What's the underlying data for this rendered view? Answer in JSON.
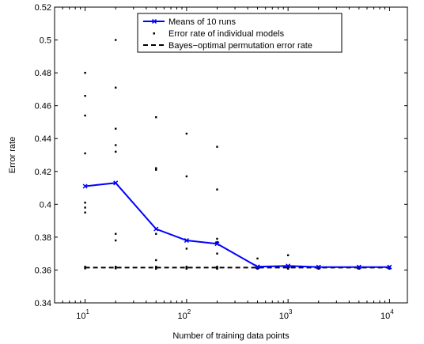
{
  "chart_data": {
    "type": "scatter",
    "xscale": "log",
    "xlabel": "Number of training data points",
    "ylabel": "Error rate",
    "xlim": [
      5,
      15000
    ],
    "ylim": [
      0.34,
      0.52
    ],
    "yticks": [
      "0.34",
      "0.36",
      "0.38",
      "0.4",
      "0.42",
      "0.44",
      "0.46",
      "0.48",
      "0.5",
      "0.52"
    ],
    "xticks": [
      {
        "base": "10",
        "exp": "1",
        "value": 10
      },
      {
        "base": "10",
        "exp": "2",
        "value": 100
      },
      {
        "base": "10",
        "exp": "3",
        "value": 1000
      },
      {
        "base": "10",
        "exp": "4",
        "value": 10000
      }
    ],
    "grid": false,
    "legend_position": "top-center",
    "series": [
      {
        "name": "Means of 10 runs",
        "style": "line-with-x-markers",
        "color": "#0000ff",
        "x": [
          10,
          20,
          50,
          100,
          200,
          500,
          1000,
          2000,
          5000,
          10000
        ],
        "y": [
          0.411,
          0.413,
          0.385,
          0.378,
          0.376,
          0.362,
          0.3625,
          0.3618,
          0.3618,
          0.3618
        ]
      },
      {
        "name": "Error rate of individual models",
        "style": "points",
        "color": "#000000",
        "points": [
          [
            10,
            0.48
          ],
          [
            10,
            0.466
          ],
          [
            10,
            0.454
          ],
          [
            10,
            0.431
          ],
          [
            10,
            0.401
          ],
          [
            10,
            0.398
          ],
          [
            10,
            0.395
          ],
          [
            10,
            0.362
          ],
          [
            10,
            0.3615
          ],
          [
            10,
            0.361
          ],
          [
            20,
            0.5
          ],
          [
            20,
            0.471
          ],
          [
            20,
            0.446
          ],
          [
            20,
            0.436
          ],
          [
            20,
            0.432
          ],
          [
            20,
            0.382
          ],
          [
            20,
            0.378
          ],
          [
            20,
            0.362
          ],
          [
            20,
            0.3615
          ],
          [
            20,
            0.361
          ],
          [
            50,
            0.453
          ],
          [
            50,
            0.422
          ],
          [
            50,
            0.421
          ],
          [
            50,
            0.382
          ],
          [
            50,
            0.366
          ],
          [
            50,
            0.362
          ],
          [
            50,
            0.3615
          ],
          [
            50,
            0.361
          ],
          [
            50,
            0.3612
          ],
          [
            50,
            0.3608
          ],
          [
            100,
            0.443
          ],
          [
            100,
            0.417
          ],
          [
            100,
            0.373
          ],
          [
            100,
            0.362
          ],
          [
            100,
            0.3615
          ],
          [
            100,
            0.361
          ],
          [
            100,
            0.3612
          ],
          [
            100,
            0.3618
          ],
          [
            100,
            0.3608
          ],
          [
            100,
            0.3614
          ],
          [
            200,
            0.435
          ],
          [
            200,
            0.409
          ],
          [
            200,
            0.379
          ],
          [
            200,
            0.377
          ],
          [
            200,
            0.37
          ],
          [
            200,
            0.362
          ],
          [
            200,
            0.3615
          ],
          [
            200,
            0.361
          ],
          [
            200,
            0.3612
          ],
          [
            200,
            0.3608
          ],
          [
            500,
            0.367
          ],
          [
            500,
            0.362
          ],
          [
            500,
            0.3615
          ],
          [
            500,
            0.361
          ],
          [
            500,
            0.3612
          ],
          [
            500,
            0.3608
          ],
          [
            500,
            0.3618
          ],
          [
            500,
            0.3614
          ],
          [
            500,
            0.3611
          ],
          [
            500,
            0.3616
          ],
          [
            1000,
            0.369
          ],
          [
            1000,
            0.362
          ],
          [
            1000,
            0.3615
          ],
          [
            1000,
            0.361
          ],
          [
            1000,
            0.3612
          ],
          [
            1000,
            0.3608
          ],
          [
            1000,
            0.3618
          ],
          [
            1000,
            0.3614
          ],
          [
            1000,
            0.3611
          ],
          [
            1000,
            0.3616
          ],
          [
            2000,
            0.362
          ],
          [
            2000,
            0.3615
          ],
          [
            2000,
            0.361
          ],
          [
            2000,
            0.3612
          ],
          [
            2000,
            0.3608
          ],
          [
            2000,
            0.3618
          ],
          [
            2000,
            0.3614
          ],
          [
            2000,
            0.3611
          ],
          [
            2000,
            0.3616
          ],
          [
            2000,
            0.3617
          ],
          [
            5000,
            0.362
          ],
          [
            5000,
            0.3615
          ],
          [
            5000,
            0.361
          ],
          [
            5000,
            0.3612
          ],
          [
            5000,
            0.3608
          ],
          [
            5000,
            0.3618
          ],
          [
            5000,
            0.3614
          ],
          [
            5000,
            0.3611
          ],
          [
            5000,
            0.3616
          ],
          [
            5000,
            0.3617
          ],
          [
            10000,
            0.362
          ],
          [
            10000,
            0.3615
          ],
          [
            10000,
            0.361
          ],
          [
            10000,
            0.3612
          ],
          [
            10000,
            0.3608
          ],
          [
            10000,
            0.3618
          ],
          [
            10000,
            0.3614
          ],
          [
            10000,
            0.3611
          ],
          [
            10000,
            0.3616
          ],
          [
            10000,
            0.3617
          ]
        ]
      },
      {
        "name": "Bayes−optimal permutation error rate",
        "style": "dashed-line",
        "color": "#000000",
        "x": [
          10,
          10000
        ],
        "y": [
          0.3615,
          0.3615
        ]
      }
    ]
  }
}
